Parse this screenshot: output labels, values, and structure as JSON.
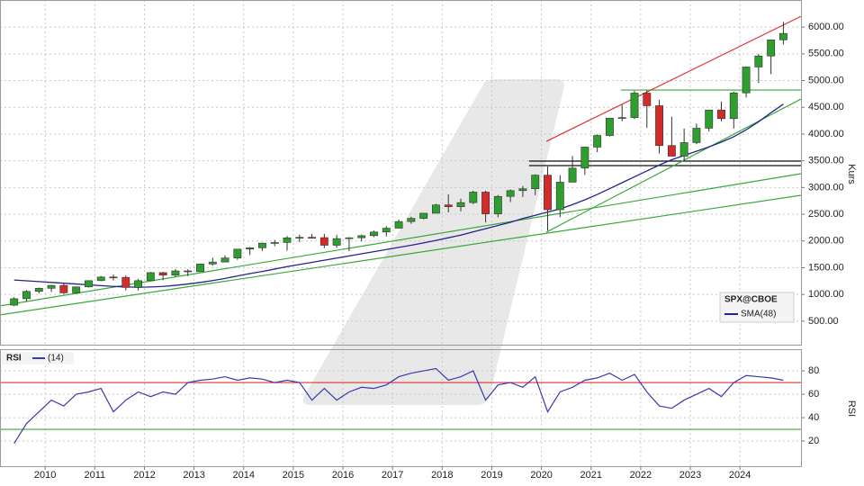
{
  "chart_data": [
    {
      "type": "candlestick",
      "name": "SPX@CBOE",
      "x": [
        2009.375,
        2009.625,
        2009.875,
        2010.125,
        2010.375,
        2010.625,
        2010.875,
        2011.125,
        2011.375,
        2011.625,
        2011.875,
        2012.125,
        2012.375,
        2012.625,
        2012.875,
        2013.125,
        2013.375,
        2013.625,
        2013.875,
        2014.125,
        2014.375,
        2014.625,
        2014.875,
        2015.125,
        2015.375,
        2015.625,
        2015.875,
        2016.125,
        2016.375,
        2016.625,
        2016.875,
        2017.125,
        2017.375,
        2017.625,
        2017.875,
        2018.125,
        2018.375,
        2018.625,
        2018.875,
        2019.125,
        2019.375,
        2019.625,
        2019.875,
        2020.125,
        2020.375,
        2020.625,
        2020.875,
        2021.125,
        2021.375,
        2021.625,
        2021.875,
        2022.125,
        2022.375,
        2022.625,
        2022.875,
        2023.125,
        2023.375,
        2023.625,
        2023.875,
        2024.125,
        2024.375,
        2024.625,
        2024.875
      ],
      "open": [
        800,
        920,
        1057,
        1115,
        1169,
        1030,
        1141,
        1258,
        1326,
        1320,
        1131,
        1258,
        1408,
        1362,
        1440,
        1426,
        1569,
        1606,
        1682,
        1848,
        1872,
        1960,
        1972,
        2059,
        2068,
        2063,
        1920,
        2044,
        2060,
        2099,
        2168,
        2239,
        2363,
        2423,
        2519,
        2674,
        2641,
        2718,
        2914,
        2507,
        2834,
        2942,
        2977,
        3231,
        2585,
        3100,
        3363,
        3756,
        3973,
        4298,
        4308,
        4766,
        4530,
        3785,
        3586,
        3840,
        4109,
        4450,
        4288,
        4770,
        5254,
        5460,
        5762
      ],
      "high": [
        950,
        1080,
        1130,
        1180,
        1220,
        1150,
        1262,
        1345,
        1370,
        1356,
        1290,
        1420,
        1422,
        1475,
        1470,
        1570,
        1687,
        1730,
        1850,
        1884,
        1968,
        2019,
        2093,
        2119,
        2135,
        2133,
        2116,
        2072,
        2120,
        2194,
        2278,
        2401,
        2454,
        2519,
        2695,
        2873,
        2791,
        2941,
        2940,
        2861,
        2964,
        3028,
        3247,
        3394,
        3233,
        3588,
        3760,
        3995,
        4302,
        4546,
        4808,
        4818,
        4637,
        4325,
        4101,
        4196,
        4450,
        4607,
        4793,
        5264,
        5500,
        5767,
        6099
      ],
      "low": [
        780,
        870,
        1020,
        1045,
        1010,
        1010,
        1130,
        1250,
        1260,
        1075,
        1075,
        1255,
        1267,
        1325,
        1343,
        1426,
        1536,
        1604,
        1646,
        1737,
        1814,
        1904,
        1820,
        1980,
        2048,
        1867,
        1871,
        1810,
        1992,
        2074,
        2084,
        2245,
        2322,
        2405,
        2520,
        2533,
        2553,
        2691,
        2346,
        2443,
        2728,
        2822,
        2856,
        2192,
        2447,
        3100,
        3234,
        3662,
        3954,
        4240,
        4278,
        4115,
        3637,
        3584,
        3492,
        3809,
        4048,
        4238,
        4104,
        4683,
        4954,
        5120,
        5674
      ],
      "close": [
        920,
        1057,
        1115,
        1169,
        1030,
        1141,
        1258,
        1326,
        1320,
        1131,
        1258,
        1408,
        1362,
        1440,
        1426,
        1569,
        1606,
        1682,
        1848,
        1872,
        1960,
        1972,
        2059,
        2068,
        2063,
        1920,
        2044,
        2060,
        2099,
        2168,
        2239,
        2363,
        2423,
        2519,
        2674,
        2641,
        2718,
        2914,
        2507,
        2834,
        2942,
        2977,
        3231,
        2585,
        3100,
        3363,
        3756,
        3973,
        4298,
        4308,
        4766,
        4530,
        3785,
        3586,
        3840,
        4109,
        4450,
        4288,
        4770,
        5254,
        5460,
        5762,
        5882
      ],
      "up_color": "#2e9e2e",
      "down_color": "#d42a2a",
      "overlays": [
        {
          "name": "SMA(48)",
          "color": "#23238f",
          "values": [
            1270,
            1255,
            1240,
            1225,
            1210,
            1195,
            1180,
            1165,
            1150,
            1140,
            1135,
            1140,
            1150,
            1170,
            1195,
            1225,
            1260,
            1300,
            1345,
            1390,
            1430,
            1475,
            1520,
            1560,
            1600,
            1640,
            1680,
            1720,
            1760,
            1800,
            1840,
            1880,
            1920,
            1965,
            2010,
            2060,
            2110,
            2170,
            2230,
            2290,
            2350,
            2420,
            2480,
            2540,
            2600,
            2680,
            2770,
            2870,
            2980,
            3090,
            3200,
            3310,
            3420,
            3520,
            3600,
            3680,
            3760,
            3850,
            3950,
            4080,
            4230,
            4400,
            4560
          ]
        }
      ],
      "trendlines": [
        {
          "color": "#e03030",
          "x": [
            2020.1,
            2025.23
          ],
          "y": [
            3864,
            6202
          ]
        },
        {
          "color": "#3aa83a",
          "x": [
            2009.09,
            2025.23
          ],
          "y": [
            786,
            3259
          ]
        },
        {
          "color": "#3aa83a",
          "x": [
            2009.09,
            2025.23
          ],
          "y": [
            618,
            2855
          ]
        },
        {
          "color": "#3aa83a",
          "x": [
            2020.1,
            2025.23
          ],
          "y": [
            2165,
            4655
          ]
        }
      ],
      "hlines": [
        {
          "color": "#3aa83a",
          "value": 4823,
          "x_from": 2021.6
        },
        {
          "color": "#111111",
          "value": 3494,
          "x_from": 2019.75
        },
        {
          "color": "#111111",
          "value": 3410,
          "x_from": 2019.75
        }
      ],
      "xlim": [
        2009.09,
        2025.23
      ],
      "ylim": [
        60,
        6440
      ],
      "yticks": [
        {
          "value": 500,
          "label": "500.00"
        },
        {
          "value": 1000,
          "label": "1000.00"
        },
        {
          "value": 1500,
          "label": "1500.00"
        },
        {
          "value": 2000,
          "label": "2000.00"
        },
        {
          "value": 2500,
          "label": "2500.00"
        },
        {
          "value": 3000,
          "label": "3000.00"
        },
        {
          "value": 3500,
          "label": "3500.00"
        },
        {
          "value": 4000,
          "label": "4000.00"
        },
        {
          "value": 4500,
          "label": "4500.00"
        },
        {
          "value": 5000,
          "label": "5000.00"
        },
        {
          "value": 5500,
          "label": "5500.00"
        },
        {
          "value": 6000,
          "label": "6000.00"
        }
      ],
      "ylabel": "Kurs",
      "grid": true
    },
    {
      "type": "line",
      "title": "RSI",
      "x": [
        2009.375,
        2009.625,
        2009.875,
        2010.125,
        2010.375,
        2010.625,
        2010.875,
        2011.125,
        2011.375,
        2011.625,
        2011.875,
        2012.125,
        2012.375,
        2012.625,
        2012.875,
        2013.125,
        2013.375,
        2013.625,
        2013.875,
        2014.125,
        2014.375,
        2014.625,
        2014.875,
        2015.125,
        2015.375,
        2015.625,
        2015.875,
        2016.125,
        2016.375,
        2016.625,
        2016.875,
        2017.125,
        2017.375,
        2017.625,
        2017.875,
        2018.125,
        2018.375,
        2018.625,
        2018.875,
        2019.125,
        2019.375,
        2019.625,
        2019.875,
        2020.125,
        2020.375,
        2020.625,
        2020.875,
        2021.125,
        2021.375,
        2021.625,
        2021.875,
        2022.125,
        2022.375,
        2022.625,
        2022.875,
        2023.125,
        2023.375,
        2023.625,
        2023.875,
        2024.125,
        2024.375,
        2024.625,
        2024.875
      ],
      "series": [
        {
          "name": "(14)",
          "color": "#3a3ab0",
          "values": [
            18,
            35,
            45,
            55,
            50,
            60,
            62,
            65,
            45,
            55,
            62,
            58,
            62,
            60,
            70,
            72,
            73,
            75,
            72,
            74,
            73,
            70,
            72,
            70,
            55,
            65,
            55,
            62,
            66,
            65,
            68,
            75,
            78,
            80,
            82,
            72,
            75,
            80,
            55,
            68,
            70,
            66,
            75,
            45,
            62,
            66,
            72,
            74,
            78,
            72,
            77,
            62,
            50,
            48,
            55,
            60,
            65,
            58,
            70,
            76,
            75,
            74,
            72
          ]
        }
      ],
      "hlines": [
        {
          "color": "#e03030",
          "value": 70
        },
        {
          "color": "#3aa83a",
          "value": 30
        }
      ],
      "xlim": [
        2009.09,
        2025.23
      ],
      "ylim": [
        -1.5,
        97
      ],
      "xticks": [
        2010,
        2011,
        2012,
        2013,
        2014,
        2015,
        2016,
        2017,
        2018,
        2019,
        2020,
        2021,
        2022,
        2023,
        2024
      ],
      "yticks": [
        20,
        40,
        60,
        80
      ],
      "ylabel": "RSI",
      "grid": true
    }
  ]
}
